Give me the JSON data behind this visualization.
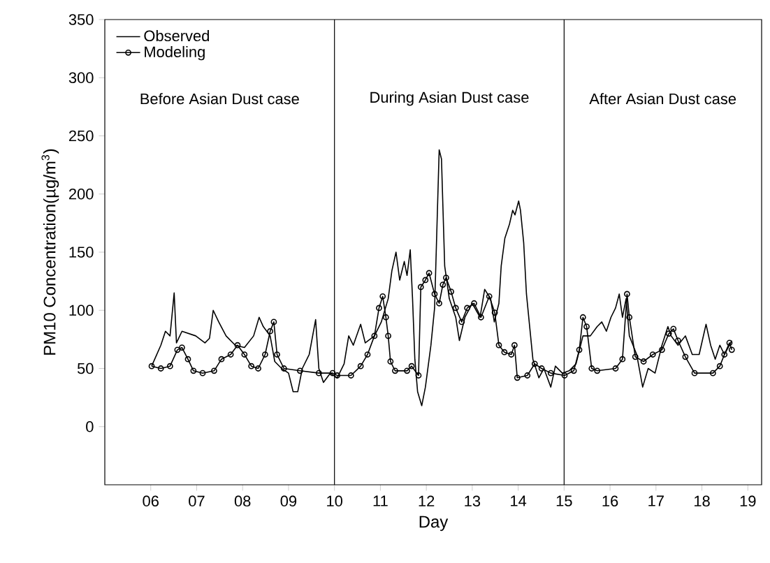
{
  "chart_data": {
    "type": "line",
    "xlabel": "Day",
    "ylabel": "PM10 Concentration(µg/m$^{3}$)",
    "xlim": [
      5,
      19.3
    ],
    "ylim": [
      -50,
      350
    ],
    "xticks": [
      {
        "value": 6,
        "label": "06"
      },
      {
        "value": 7,
        "label": "07"
      },
      {
        "value": 8,
        "label": "08"
      },
      {
        "value": 9,
        "label": "09"
      },
      10,
      11,
      12,
      13,
      14,
      15,
      16,
      17,
      18,
      19
    ],
    "yticks": [
      0,
      50,
      100,
      150,
      200,
      250,
      300,
      350
    ],
    "grid": false,
    "legend": "top left",
    "ref_lines": [
      {
        "axis": "x",
        "value": 10,
        "color": "#000000"
      },
      {
        "axis": "x",
        "value": 15,
        "color": "#000000"
      }
    ],
    "annotations": [
      "Before Asian Dust case",
      "During Asian Dust case",
      "After Asian Dust case"
    ],
    "series": [
      {
        "name": "Observed",
        "color": "#000000",
        "marker": "none",
        "x": [
          6.02,
          6.22,
          6.32,
          6.42,
          6.51,
          6.56,
          6.68,
          6.83,
          6.98,
          7.18,
          7.28,
          7.36,
          7.48,
          7.64,
          7.84,
          8.04,
          8.24,
          8.36,
          8.45,
          8.6,
          8.7,
          8.85,
          9.0,
          9.1,
          9.2,
          9.3,
          9.45,
          9.59,
          9.66,
          9.76,
          9.91,
          10.06,
          10.21,
          10.31,
          10.41,
          10.57,
          10.67,
          10.87,
          11.02,
          11.17,
          11.25,
          11.34,
          11.42,
          11.52,
          11.58,
          11.65,
          11.7,
          11.75,
          11.81,
          11.9,
          11.98,
          12.1,
          12.18,
          12.23,
          12.28,
          12.33,
          12.4,
          12.5,
          12.64,
          12.72,
          12.84,
          13.0,
          13.17,
          13.27,
          13.4,
          13.48,
          13.58,
          13.63,
          13.71,
          13.81,
          13.88,
          13.93,
          14.01,
          14.05,
          14.12,
          14.18,
          14.25,
          14.32,
          14.45,
          14.56,
          14.71,
          14.81,
          14.96,
          15.11,
          15.26,
          15.41,
          15.57,
          15.72,
          15.82,
          15.92,
          16.02,
          16.12,
          16.2,
          16.27,
          16.35,
          16.42,
          16.58,
          16.71,
          16.83,
          16.98,
          17.13,
          17.26,
          17.33,
          17.48,
          17.64,
          17.79,
          17.94,
          18.09,
          18.19,
          18.29,
          18.39,
          18.49,
          18.6,
          18.65
        ],
        "values": [
          52,
          70,
          82,
          78,
          115,
          72,
          82,
          80,
          78,
          72,
          76,
          100,
          90,
          78,
          70,
          68,
          78,
          94,
          86,
          78,
          56,
          50,
          46,
          30,
          30,
          50,
          62,
          92,
          50,
          38,
          46,
          42,
          54,
          78,
          70,
          88,
          72,
          78,
          90,
          110,
          134,
          150,
          126,
          142,
          130,
          152,
          110,
          58,
          30,
          18,
          34,
          70,
          102,
          170,
          238,
          230,
          138,
          110,
          94,
          74,
          94,
          106,
          94,
          118,
          110,
          90,
          106,
          138,
          162,
          174,
          186,
          182,
          194,
          186,
          158,
          114,
          86,
          58,
          42,
          50,
          34,
          52,
          46,
          48,
          54,
          78,
          78,
          86,
          90,
          82,
          94,
          102,
          114,
          94,
          110,
          78,
          62,
          34,
          50,
          46,
          70,
          86,
          78,
          70,
          78,
          62,
          62,
          88,
          70,
          58,
          70,
          62,
          70,
          74
        ]
      },
      {
        "name": "Modeling",
        "color": "#000000",
        "marker": "circle",
        "x": [
          6.02,
          6.22,
          6.42,
          6.58,
          6.68,
          6.81,
          6.93,
          7.13,
          7.38,
          7.54,
          7.74,
          7.89,
          8.04,
          8.19,
          8.34,
          8.49,
          8.6,
          8.68,
          8.75,
          8.9,
          9.25,
          9.66,
          9.96,
          10.06,
          10.36,
          10.57,
          10.72,
          10.87,
          10.97,
          11.05,
          11.12,
          11.17,
          11.22,
          11.32,
          11.58,
          11.68,
          11.83,
          11.88,
          11.98,
          12.06,
          12.18,
          12.28,
          12.36,
          12.43,
          12.54,
          12.64,
          12.77,
          12.89,
          13.04,
          13.19,
          13.37,
          13.49,
          13.58,
          13.7,
          13.85,
          13.92,
          13.98,
          14.2,
          14.36,
          14.51,
          14.71,
          15.01,
          15.21,
          15.33,
          15.41,
          15.49,
          15.6,
          15.72,
          16.12,
          16.27,
          16.37,
          16.42,
          16.55,
          16.73,
          16.93,
          17.13,
          17.28,
          17.38,
          17.48,
          17.64,
          17.84,
          18.24,
          18.39,
          18.49,
          18.6,
          18.65
        ],
        "values": [
          52,
          50,
          52,
          66,
          68,
          58,
          48,
          46,
          48,
          58,
          62,
          70,
          62,
          52,
          50,
          62,
          82,
          90,
          62,
          50,
          48,
          46,
          46,
          44,
          44,
          52,
          62,
          78,
          102,
          112,
          94,
          78,
          56,
          48,
          48,
          52,
          44,
          120,
          126,
          132,
          114,
          106,
          122,
          128,
          116,
          102,
          90,
          102,
          106,
          94,
          112,
          98,
          70,
          64,
          62,
          70,
          42,
          44,
          54,
          50,
          46,
          44,
          48,
          66,
          94,
          86,
          50,
          48,
          50,
          58,
          114,
          94,
          60,
          56,
          62,
          66,
          80,
          84,
          74,
          60,
          46,
          46,
          52,
          62,
          72,
          66
        ]
      }
    ]
  }
}
